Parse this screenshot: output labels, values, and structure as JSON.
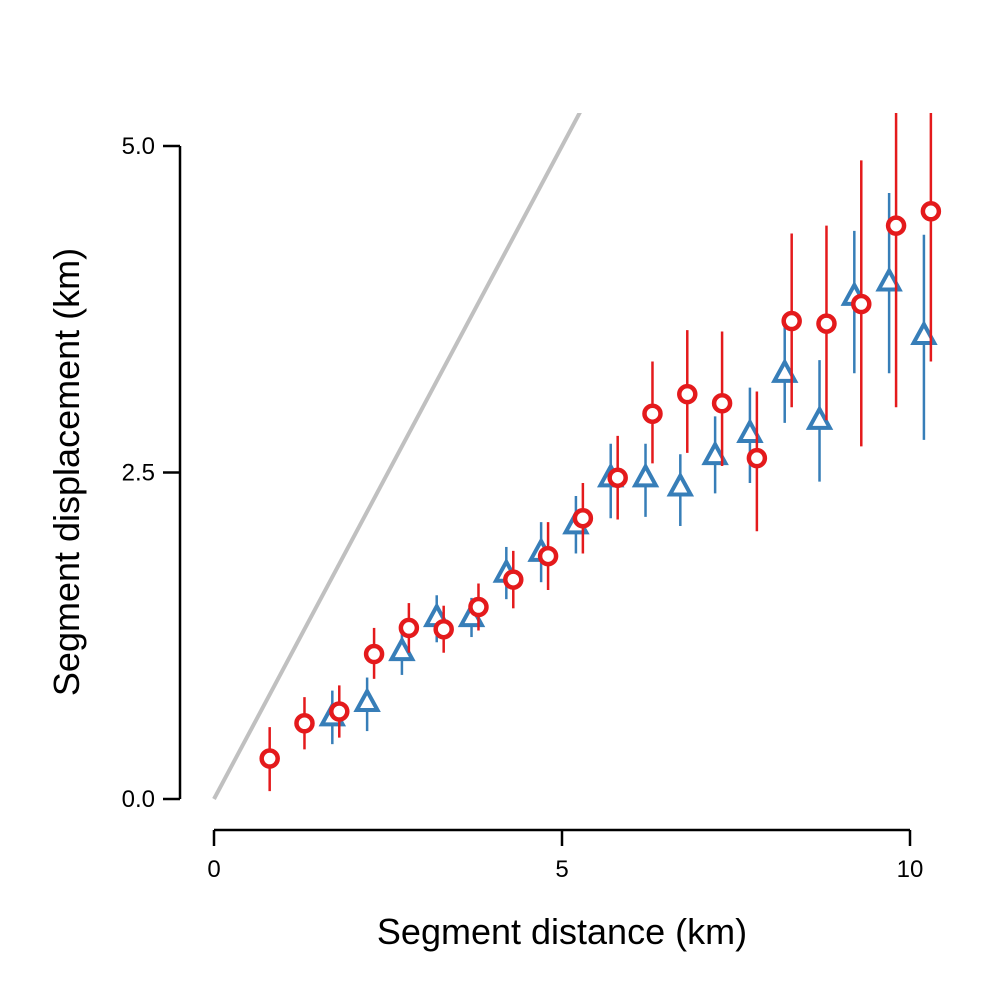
{
  "chart_data": {
    "type": "scatter",
    "title": "",
    "xlabel": "Segment distance (km)",
    "ylabel": "Segment displacement (km)",
    "xlim": [
      0,
      10
    ],
    "ylim": [
      0,
      5
    ],
    "x_ticks": [
      0,
      5,
      10
    ],
    "x_tick_labels": [
      "0",
      "5",
      "10"
    ],
    "y_ticks": [
      0,
      2.5,
      5
    ],
    "y_tick_labels": [
      "0.0",
      "2.5",
      "5.0"
    ],
    "grid": false,
    "legend": "none",
    "reference_line": {
      "x": [
        0,
        5.3
      ],
      "y": [
        0,
        5.3
      ],
      "color": "#c0c0c0"
    },
    "series": [
      {
        "marker": "triangle",
        "color": "#377eb8",
        "x": [
          1.7,
          2.2,
          2.7,
          3.2,
          3.7,
          4.2,
          4.7,
          5.2,
          5.7,
          6.2,
          6.7,
          7.2,
          7.7,
          8.2,
          8.7,
          9.2,
          9.7,
          10.2
        ],
        "y": [
          0.63,
          0.74,
          1.13,
          1.39,
          1.39,
          1.73,
          1.89,
          2.1,
          2.46,
          2.46,
          2.39,
          2.63,
          2.8,
          3.26,
          2.9,
          3.85,
          3.96,
          3.55
        ],
        "err_low": [
          0.42,
          0.52,
          0.95,
          1.2,
          1.24,
          1.53,
          1.66,
          1.88,
          2.15,
          2.16,
          2.09,
          2.34,
          2.42,
          2.88,
          2.43,
          3.26,
          3.26,
          2.75
        ],
        "err_high": [
          0.83,
          0.93,
          1.3,
          1.56,
          1.54,
          1.93,
          2.12,
          2.32,
          2.72,
          2.72,
          2.64,
          2.93,
          3.15,
          3.63,
          3.36,
          4.35,
          4.64,
          4.32
        ]
      },
      {
        "marker": "circle",
        "color": "#e41a1c",
        "x": [
          0.8,
          1.3,
          1.8,
          2.3,
          2.8,
          3.3,
          3.8,
          4.3,
          4.8,
          5.3,
          5.8,
          6.3,
          6.8,
          7.3,
          7.8,
          8.3,
          8.8,
          9.3,
          9.8,
          10.3
        ],
        "y": [
          0.31,
          0.58,
          0.67,
          1.11,
          1.31,
          1.3,
          1.47,
          1.68,
          1.86,
          2.15,
          2.46,
          2.95,
          3.1,
          3.03,
          2.61,
          3.66,
          3.64,
          3.79,
          4.39,
          4.5
        ],
        "err_low": [
          0.06,
          0.38,
          0.47,
          0.92,
          1.12,
          1.12,
          1.29,
          1.46,
          1.6,
          1.88,
          2.14,
          2.57,
          2.65,
          2.55,
          2.05,
          3.0,
          2.9,
          2.7,
          3.0,
          3.35
        ],
        "err_high": [
          0.55,
          0.78,
          0.87,
          1.31,
          1.5,
          1.48,
          1.65,
          1.9,
          2.12,
          2.42,
          2.78,
          3.35,
          3.59,
          3.58,
          3.12,
          4.33,
          4.39,
          4.89,
          5.3,
          5.3
        ]
      }
    ]
  }
}
